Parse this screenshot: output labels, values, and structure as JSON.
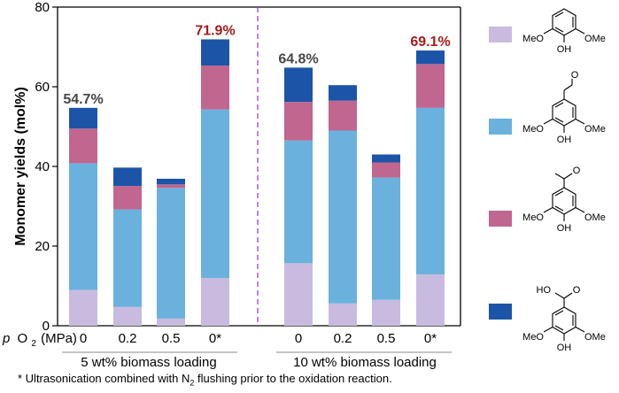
{
  "chart_data": {
    "type": "stacked-bar",
    "ylabel": "Monomer yields (mol%)",
    "ylim": [
      0,
      80
    ],
    "yticks": [
      0,
      20,
      40,
      60,
      80
    ],
    "x_axis_label": {
      "p": "p",
      "O": "O",
      "sub": "2",
      "unit": "(MPa)"
    },
    "groups": [
      {
        "name": "5 wt% biomass loading",
        "categories": [
          "0",
          "0.2",
          "0.5",
          "0*"
        ],
        "stacks": [
          [
            9.0,
            31.8,
            8.7,
            5.2
          ],
          [
            4.7,
            24.5,
            5.9,
            4.6
          ],
          [
            1.8,
            32.8,
            0.9,
            1.4
          ],
          [
            12.0,
            42.3,
            11.0,
            6.6
          ]
        ],
        "totals": [
          "54.7%",
          "",
          "",
          "71.9%"
        ]
      },
      {
        "name": "10 wt% biomass loading",
        "categories": [
          "0",
          "0.2",
          "0.5",
          "0*"
        ],
        "stacks": [
          [
            15.7,
            30.8,
            9.7,
            8.6
          ],
          [
            5.6,
            43.4,
            7.5,
            3.9
          ],
          [
            6.5,
            30.7,
            3.8,
            2.0
          ],
          [
            12.9,
            41.8,
            11.0,
            3.4
          ]
        ],
        "totals": [
          "64.8%",
          "",
          "",
          "69.1%"
        ]
      }
    ],
    "series": [
      {
        "name": "syringol",
        "color": "#c8bbdf"
      },
      {
        "name": "syringaldehyde",
        "color": "#6ab1de"
      },
      {
        "name": "acetosyringone",
        "color": "#c0668f"
      },
      {
        "name": "syringic acid",
        "color": "#1c55a8"
      }
    ],
    "total_label_colors": {
      "normal": "#474747",
      "highlight": "#a51c1c"
    },
    "divider_color": "#9b3fd6",
    "legend_text": {
      "meo": "MeO",
      "ome": "OMe",
      "oh": "OH",
      "ho": "HO",
      "o": "O"
    },
    "footnote": {
      "before": "* Ultrasonication combined with N",
      "sub": "2",
      "after": " flushing prior to the oxidation reaction."
    }
  }
}
